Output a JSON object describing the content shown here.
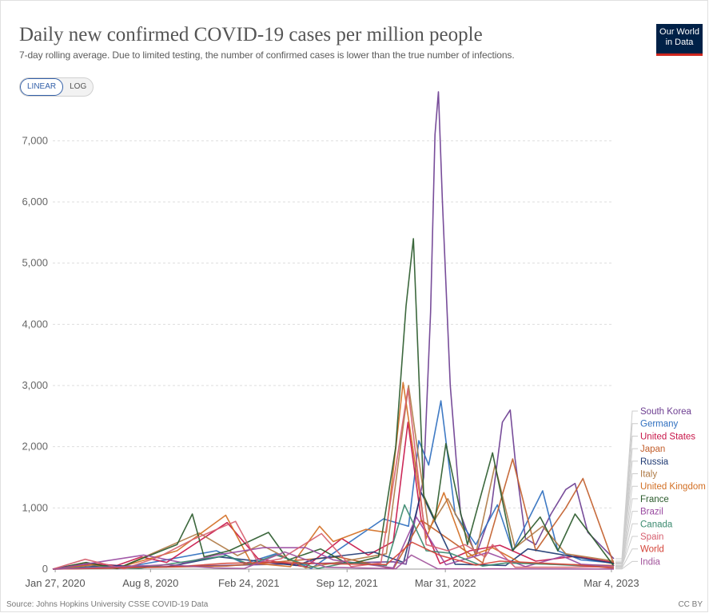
{
  "header": {
    "title": "Daily new confirmed COVID-19 cases per million people",
    "subtitle": "7-day rolling average. Due to limited testing, the number of confirmed cases is lower than the true number of infections.",
    "logo_line1": "Our World",
    "logo_line2": "in Data"
  },
  "controls": {
    "linear_label": "LINEAR",
    "log_label": "LOG",
    "active": "LINEAR"
  },
  "footer": {
    "source": "Source: Johns Hopkins University CSSE COVID-19 Data",
    "license": "CC BY"
  },
  "chart_data": {
    "type": "line",
    "title": "Daily new confirmed COVID-19 cases per million people",
    "xlabel": "",
    "ylabel": "",
    "xlim": [
      "2020-01-22",
      "2023-03-09"
    ],
    "ylim": [
      0,
      7800
    ],
    "yticks": [
      0,
      1000,
      2000,
      3000,
      4000,
      5000,
      6000,
      7000
    ],
    "ytick_labels": [
      "0",
      "1,000",
      "2,000",
      "3,000",
      "4,000",
      "5,000",
      "6,000",
      "7,000"
    ],
    "xticks": [
      "2020-01-27",
      "2020-08-08",
      "2021-02-24",
      "2021-09-12",
      "2022-03-31",
      "2023-03-04"
    ],
    "xtick_labels": [
      "Jan 27, 2020",
      "Aug 8, 2020",
      "Feb 24, 2021",
      "Sep 12, 2021",
      "Mar 31, 2022",
      "Mar 4, 2023"
    ],
    "grid": "horizontal dashed",
    "legend": "right (line-end labels)",
    "series": [
      {
        "name": "South Korea",
        "color": "#6d3e91",
        "x": [
          "2020-01-22",
          "2021-12-15",
          "2022-01-10",
          "2022-02-15",
          "2022-03-01",
          "2022-03-10",
          "2022-03-17",
          "2022-03-25",
          "2022-04-10",
          "2022-05-01",
          "2022-06-01",
          "2022-07-01",
          "2022-07-25",
          "2022-08-10",
          "2022-08-20",
          "2022-09-10",
          "2022-10-01",
          "2022-11-01",
          "2022-12-01",
          "2022-12-20",
          "2023-01-15",
          "2023-03-09"
        ],
        "values": [
          0,
          120,
          80,
          1500,
          4200,
          7100,
          7800,
          6000,
          3000,
          900,
          220,
          900,
          2400,
          2600,
          1800,
          500,
          400,
          900,
          1300,
          1400,
          600,
          170
        ]
      },
      {
        "name": "Germany",
        "color": "#2f6fbf",
        "x": [
          "2020-01-22",
          "2020-04-05",
          "2020-06-01",
          "2020-12-20",
          "2021-02-15",
          "2021-04-20",
          "2021-07-01",
          "2021-11-25",
          "2022-01-15",
          "2022-02-05",
          "2022-02-25",
          "2022-03-22",
          "2022-04-20",
          "2022-06-01",
          "2022-07-15",
          "2022-08-15",
          "2022-10-15",
          "2022-11-15",
          "2023-01-01",
          "2023-03-09"
        ],
        "values": [
          0,
          70,
          5,
          300,
          90,
          250,
          10,
          820,
          700,
          2100,
          1700,
          2750,
          900,
          400,
          1050,
          300,
          1280,
          300,
          150,
          100
        ]
      },
      {
        "name": "United States",
        "color": "#c8174a",
        "x": [
          "2020-01-22",
          "2020-04-10",
          "2020-06-01",
          "2020-07-20",
          "2020-09-10",
          "2021-01-11",
          "2021-03-15",
          "2021-06-20",
          "2021-09-01",
          "2021-10-25",
          "2021-12-15",
          "2022-01-14",
          "2022-02-10",
          "2022-03-20",
          "2022-05-20",
          "2022-07-20",
          "2022-10-01",
          "2022-12-20",
          "2023-03-09"
        ],
        "values": [
          0,
          90,
          60,
          200,
          110,
          760,
          170,
          35,
          500,
          230,
          450,
          2400,
          800,
          90,
          300,
          390,
          130,
          210,
          110
        ]
      },
      {
        "name": "Japan",
        "color": "#c25e2b",
        "x": [
          "2020-01-22",
          "2021-01-10",
          "2021-08-25",
          "2021-12-15",
          "2022-02-10",
          "2022-06-15",
          "2022-08-15",
          "2022-10-01",
          "2022-12-01",
          "2023-01-05",
          "2023-03-09"
        ],
        "values": [
          0,
          50,
          200,
          3,
          800,
          100,
          1800,
          300,
          1000,
          1480,
          80
        ]
      },
      {
        "name": "Russia",
        "color": "#1f3a73",
        "x": [
          "2020-01-22",
          "2020-05-15",
          "2020-09-10",
          "2020-12-25",
          "2021-06-01",
          "2021-07-10",
          "2021-11-05",
          "2022-01-05",
          "2022-02-10",
          "2022-04-20",
          "2022-08-01",
          "2022-09-15",
          "2023-03-09"
        ],
        "values": [
          0,
          60,
          35,
          200,
          60,
          170,
          280,
          110,
          1250,
          80,
          60,
          330,
          90
        ]
      },
      {
        "name": "Italy",
        "color": "#b07b46",
        "x": [
          "2020-01-22",
          "2020-03-25",
          "2020-06-01",
          "2020-11-15",
          "2021-02-01",
          "2021-03-20",
          "2021-06-20",
          "2021-12-01",
          "2022-01-15",
          "2022-02-25",
          "2022-04-05",
          "2022-06-01",
          "2022-07-10",
          "2022-08-20",
          "2022-10-15",
          "2022-12-01",
          "2023-03-09"
        ],
        "values": [
          0,
          100,
          5,
          590,
          220,
          400,
          20,
          250,
          3000,
          650,
          1150,
          250,
          1700,
          350,
          700,
          250,
          130
        ]
      },
      {
        "name": "United Kingdom",
        "color": "#d26f24",
        "x": [
          "2020-01-22",
          "2020-04-15",
          "2020-06-01",
          "2020-10-01",
          "2021-01-08",
          "2021-03-01",
          "2021-05-20",
          "2021-07-18",
          "2021-08-15",
          "2021-10-20",
          "2021-12-01",
          "2022-01-04",
          "2022-02-20",
          "2022-03-28",
          "2022-05-15",
          "2022-07-05",
          "2022-09-01",
          "2022-11-01",
          "2023-03-09"
        ],
        "values": [
          0,
          70,
          20,
          300,
          880,
          100,
          40,
          700,
          450,
          650,
          600,
          3050,
          500,
          1250,
          200,
          350,
          100,
          80,
          60
        ]
      },
      {
        "name": "France",
        "color": "#2b5b2c",
        "x": [
          "2020-01-22",
          "2020-03-30",
          "2020-06-01",
          "2020-10-01",
          "2020-11-01",
          "2020-11-25",
          "2021-01-15",
          "2021-04-05",
          "2021-05-15",
          "2021-07-20",
          "2021-09-15",
          "2021-11-15",
          "2021-12-20",
          "2022-01-10",
          "2022-01-25",
          "2022-02-15",
          "2022-03-10",
          "2022-04-01",
          "2022-05-15",
          "2022-07-05",
          "2022-08-15",
          "2022-10-10",
          "2022-11-15",
          "2022-12-20",
          "2023-03-09"
        ],
        "values": [
          0,
          110,
          10,
          400,
          900,
          200,
          300,
          600,
          150,
          330,
          80,
          200,
          2000,
          4300,
          5400,
          1200,
          800,
          2050,
          400,
          1900,
          300,
          850,
          300,
          900,
          50
        ]
      },
      {
        "name": "Brazil",
        "color": "#9a4ba1",
        "x": [
          "2020-01-22",
          "2020-07-25",
          "2020-10-15",
          "2020-12-20",
          "2021-03-25",
          "2021-06-20",
          "2021-08-15",
          "2021-12-15",
          "2022-01-31",
          "2022-04-01",
          "2022-06-25",
          "2022-09-10",
          "2022-11-25",
          "2023-01-01",
          "2023-03-09"
        ],
        "values": [
          0,
          230,
          100,
          230,
          350,
          350,
          150,
          20,
          850,
          70,
          270,
          40,
          210,
          80,
          50
        ]
      },
      {
        "name": "Canada",
        "color": "#3b8a6f",
        "x": [
          "2020-01-22",
          "2020-05-01",
          "2020-07-15",
          "2021-01-10",
          "2021-02-25",
          "2021-04-20",
          "2021-07-15",
          "2021-09-15",
          "2021-12-01",
          "2022-01-07",
          "2022-02-20",
          "2022-04-10",
          "2022-06-15",
          "2022-08-01",
          "2022-11-01",
          "2023-03-09"
        ],
        "values": [
          0,
          40,
          10,
          220,
          80,
          230,
          10,
          110,
          60,
          1050,
          300,
          260,
          50,
          100,
          80,
          30
        ]
      },
      {
        "name": "Spain",
        "color": "#d65f6f",
        "x": [
          "2020-01-22",
          "2020-03-28",
          "2020-06-15",
          "2020-08-25",
          "2020-11-01",
          "2021-01-28",
          "2021-03-15",
          "2021-05-01",
          "2021-07-22",
          "2021-09-20",
          "2021-11-20",
          "2022-01-14",
          "2022-02-20",
          "2022-04-05",
          "2022-05-10",
          "2022-06-20",
          "2022-07-05",
          "2022-08-20",
          "2022-12-01",
          "2023-03-09"
        ],
        "values": [
          0,
          160,
          5,
          200,
          480,
          780,
          100,
          170,
          580,
          40,
          100,
          2950,
          400,
          300,
          400,
          200,
          400,
          30,
          30,
          40
        ]
      },
      {
        "name": "World",
        "color": "#d4453a",
        "x": [
          "2020-01-22",
          "2020-10-01",
          "2021-01-10",
          "2021-04-25",
          "2021-08-20",
          "2021-12-01",
          "2022-01-22",
          "2022-03-20",
          "2022-06-01",
          "2022-07-20",
          "2022-12-20",
          "2023-03-09"
        ],
        "values": [
          0,
          40,
          95,
          110,
          85,
          75,
          440,
          225,
          65,
          130,
          70,
          15
        ]
      },
      {
        "name": "India",
        "color": "#a2559c",
        "x": [
          "2020-01-22",
          "2020-09-15",
          "2020-12-15",
          "2021-02-15",
          "2021-05-08",
          "2021-08-01",
          "2021-12-20",
          "2022-01-21",
          "2022-03-15",
          "2023-03-09"
        ],
        "values": [
          0,
          70,
          20,
          9,
          280,
          30,
          5,
          230,
          5,
          1
        ]
      }
    ]
  }
}
